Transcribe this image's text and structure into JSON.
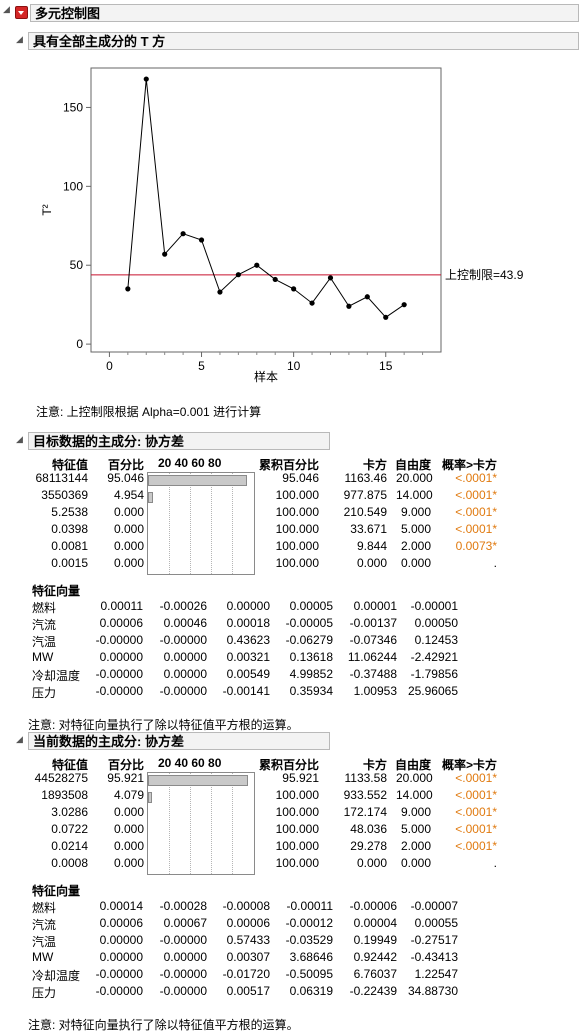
{
  "outline": {
    "title": "多元控制图"
  },
  "t2_section": {
    "title": "具有全部主成分的 T 方",
    "chart_data": {
      "type": "line",
      "xlabel": "样本",
      "ylabel": "T²",
      "x": [
        1,
        2,
        3,
        4,
        5,
        6,
        7,
        8,
        9,
        10,
        11,
        12,
        13,
        14,
        15,
        16
      ],
      "values": [
        35,
        168,
        57,
        70,
        66,
        33,
        44,
        50,
        41,
        35,
        26,
        42,
        24,
        30,
        17,
        25
      ],
      "xticks": [
        "0",
        "5",
        "10",
        "15"
      ],
      "yticks": [
        "0",
        "50",
        "100",
        "150"
      ],
      "xlim": [
        -1,
        18
      ],
      "ylim": [
        -5,
        175
      ],
      "ucl": 43.9,
      "ucl_label": "上控制限=43.9",
      "ucl_color": "#c8102e"
    },
    "note": "注意: 上控制限根据 Alpha=0.001 进行计算"
  },
  "target_pc": {
    "title": "目标数据的主成分: 协方差",
    "headers": [
      "特征值",
      "百分比",
      "20 40 60 80",
      "累积百分比",
      "卡方",
      "自由度",
      "概率>卡方"
    ],
    "rows": [
      {
        "eig": "68113144",
        "pct": "95.046",
        "pval": 95.046,
        "cum": "95.046",
        "chi": "1163.46",
        "df": "20.000",
        "prob": "<.0001*"
      },
      {
        "eig": "3550369",
        "pct": "4.954",
        "pval": 4.954,
        "cum": "100.000",
        "chi": "977.875",
        "df": "14.000",
        "prob": "<.0001*"
      },
      {
        "eig": "5.2538",
        "pct": "0.000",
        "pval": 0,
        "cum": "100.000",
        "chi": "210.549",
        "df": "9.000",
        "prob": "<.0001*"
      },
      {
        "eig": "0.0398",
        "pct": "0.000",
        "pval": 0,
        "cum": "100.000",
        "chi": "33.671",
        "df": "5.000",
        "prob": "<.0001*"
      },
      {
        "eig": "0.0081",
        "pct": "0.000",
        "pval": 0,
        "cum": "100.000",
        "chi": "9.844",
        "df": "2.000",
        "prob": "0.0073*"
      },
      {
        "eig": "0.0015",
        "pct": "0.000",
        "pval": 0,
        "cum": "100.000",
        "chi": "0.000",
        "df": "0.000",
        "prob": "."
      }
    ],
    "eigvec_title": "特征向量",
    "eigvec": [
      {
        "name": "燃料",
        "v": [
          "0.00011",
          "-0.00026",
          "0.00000",
          "0.00005",
          "0.00001",
          "-0.00001"
        ]
      },
      {
        "name": "汽流",
        "v": [
          "0.00006",
          "0.00046",
          "0.00018",
          "-0.00005",
          "-0.00137",
          "0.00050"
        ]
      },
      {
        "name": "汽温",
        "v": [
          "-0.00000",
          "-0.00000",
          "0.43623",
          "-0.06279",
          "-0.07346",
          "0.12453"
        ]
      },
      {
        "name": "MW",
        "v": [
          "0.00000",
          "0.00000",
          "0.00321",
          "0.13618",
          "11.06244",
          "-2.42921"
        ]
      },
      {
        "name": "冷却温度",
        "v": [
          "-0.00000",
          "0.00000",
          "0.00549",
          "4.99852",
          "-0.37488",
          "-1.79856"
        ]
      },
      {
        "name": "压力",
        "v": [
          "-0.00000",
          "-0.00000",
          "-0.00141",
          "0.35934",
          "1.00953",
          "25.96065"
        ]
      }
    ],
    "note": "注意: 对特征向量执行了除以特征值平方根的运算。"
  },
  "current_pc": {
    "title": "当前数据的主成分: 协方差",
    "headers": [
      "特征值",
      "百分比",
      "20 40 60 80",
      "累积百分比",
      "卡方",
      "自由度",
      "概率>卡方"
    ],
    "rows": [
      {
        "eig": "44528275",
        "pct": "95.921",
        "pval": 95.921,
        "cum": "95.921",
        "chi": "1133.58",
        "df": "20.000",
        "prob": "<.0001*"
      },
      {
        "eig": "1893508",
        "pct": "4.079",
        "pval": 4.079,
        "cum": "100.000",
        "chi": "933.552",
        "df": "14.000",
        "prob": "<.0001*"
      },
      {
        "eig": "3.0286",
        "pct": "0.000",
        "pval": 0,
        "cum": "100.000",
        "chi": "172.174",
        "df": "9.000",
        "prob": "<.0001*"
      },
      {
        "eig": "0.0722",
        "pct": "0.000",
        "pval": 0,
        "cum": "100.000",
        "chi": "48.036",
        "df": "5.000",
        "prob": "<.0001*"
      },
      {
        "eig": "0.0214",
        "pct": "0.000",
        "pval": 0,
        "cum": "100.000",
        "chi": "29.278",
        "df": "2.000",
        "prob": "<.0001*"
      },
      {
        "eig": "0.0008",
        "pct": "0.000",
        "pval": 0,
        "cum": "100.000",
        "chi": "0.000",
        "df": "0.000",
        "prob": "."
      }
    ],
    "eigvec_title": "特征向量",
    "eigvec": [
      {
        "name": "燃料",
        "v": [
          "0.00014",
          "-0.00028",
          "-0.00008",
          "-0.00011",
          "-0.00006",
          "-0.00007"
        ]
      },
      {
        "name": "汽流",
        "v": [
          "0.00006",
          "0.00067",
          "0.00006",
          "-0.00012",
          "0.00004",
          "0.00055"
        ]
      },
      {
        "name": "汽温",
        "v": [
          "0.00000",
          "-0.00000",
          "0.57433",
          "-0.03529",
          "0.19949",
          "-0.27517"
        ]
      },
      {
        "name": "MW",
        "v": [
          "0.00000",
          "0.00000",
          "0.00307",
          "3.68646",
          "0.92442",
          "-0.43413"
        ]
      },
      {
        "name": "冷却温度",
        "v": [
          "-0.00000",
          "-0.00000",
          "-0.01720",
          "-0.50095",
          "6.76037",
          "1.22547"
        ]
      },
      {
        "name": "压力",
        "v": [
          "-0.00000",
          "-0.00000",
          "0.00517",
          "0.06319",
          "-0.22439",
          "34.88730"
        ]
      }
    ],
    "note": "注意: 对特征向量执行了除以特征值平方根的运算。"
  }
}
